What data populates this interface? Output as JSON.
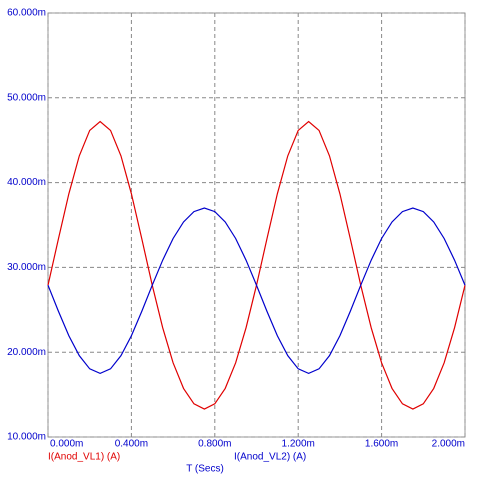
{
  "chart_data": {
    "type": "line",
    "xlabel": "T (Secs)",
    "x": [
      0,
      0.05,
      0.1,
      0.15,
      0.2,
      0.25,
      0.3,
      0.35,
      0.4,
      0.45,
      0.5,
      0.55,
      0.6,
      0.65,
      0.7,
      0.75,
      0.8,
      0.85,
      0.9,
      0.95,
      1.0,
      1.05,
      1.1,
      1.15,
      1.2,
      1.25,
      1.3,
      1.35,
      1.4,
      1.45,
      1.5,
      1.55,
      1.6,
      1.65,
      1.7,
      1.75,
      1.8,
      1.85,
      1.9,
      1.95,
      2.0
    ],
    "series": [
      {
        "name": "I(Anod_VL1) (A)",
        "color": "#e00000",
        "values": [
          27.9,
          33.36,
          38.68,
          43.15,
          46.15,
          47.2,
          46.15,
          43.15,
          38.68,
          33.36,
          27.9,
          22.89,
          18.75,
          15.73,
          13.91,
          13.3,
          13.91,
          15.73,
          18.75,
          22.89,
          27.9,
          33.36,
          38.68,
          43.15,
          46.15,
          47.2,
          46.15,
          43.15,
          38.68,
          33.36,
          27.9,
          22.89,
          18.75,
          15.73,
          13.91,
          13.3,
          13.91,
          15.73,
          18.75,
          22.89,
          27.9
        ]
      },
      {
        "name": "I(Anod_VL2) (A)",
        "color": "#0000cc",
        "values": [
          27.9,
          24.83,
          21.94,
          19.59,
          18.04,
          17.5,
          18.04,
          19.59,
          21.94,
          24.83,
          27.9,
          30.85,
          33.41,
          35.36,
          36.58,
          37.0,
          36.58,
          35.36,
          33.41,
          30.85,
          27.9,
          24.83,
          21.94,
          19.59,
          18.04,
          17.5,
          18.04,
          19.59,
          21.94,
          24.83,
          27.9,
          30.85,
          33.41,
          35.36,
          36.58,
          37.0,
          36.58,
          35.36,
          33.41,
          30.85,
          27.9
        ]
      }
    ],
    "xlim": [
      0,
      2.0
    ],
    "ylim": [
      10,
      60
    ],
    "xticks": [
      {
        "value": 0,
        "label": "0.000m"
      },
      {
        "value": 0.4,
        "label": "0.400m"
      },
      {
        "value": 0.8,
        "label": "0.800m"
      },
      {
        "value": 1.2,
        "label": "1.200m"
      },
      {
        "value": 1.6,
        "label": "1.600m"
      },
      {
        "value": 2.0,
        "label": "2.000m"
      }
    ],
    "yticks": [
      {
        "value": 10,
        "label": "10.000m"
      },
      {
        "value": 20,
        "label": "20.000m"
      },
      {
        "value": 30,
        "label": "30.000m"
      },
      {
        "value": 40,
        "label": "40.000m"
      },
      {
        "value": 50,
        "label": "50.000m"
      },
      {
        "value": 60,
        "label": "60.000m"
      }
    ],
    "grid": true,
    "axis_color": "#0000cc"
  }
}
